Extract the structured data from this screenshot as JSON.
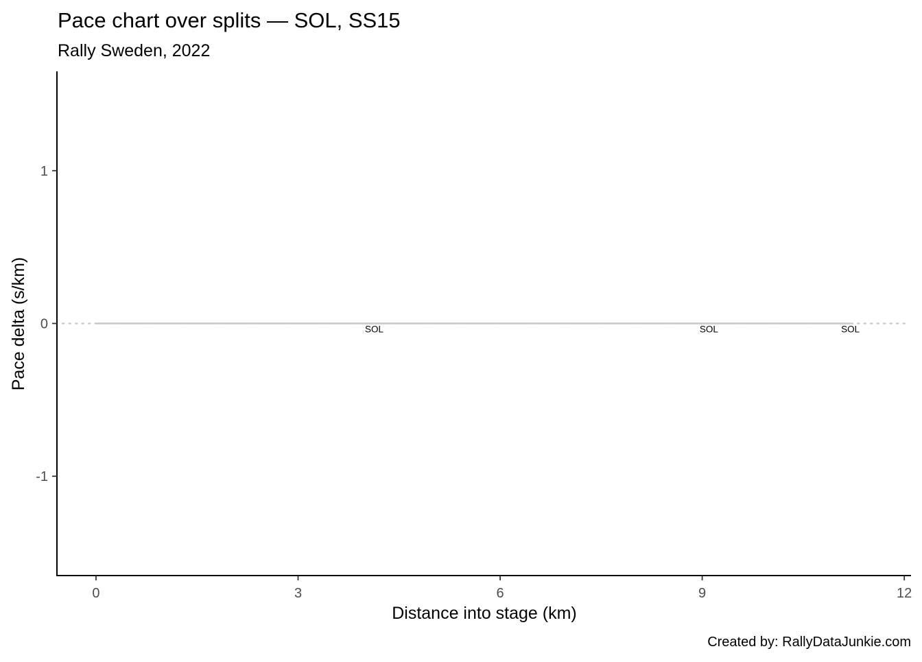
{
  "chart_data": {
    "type": "line",
    "title": "Pace chart over splits — SOL, SS15",
    "subtitle": "Rally Sweden, 2022",
    "xlabel": "Distance into stage (km)",
    "ylabel": "Pace delta (s/km)",
    "caption": "Created by: RallyDataJunkie.com",
    "xlim": [
      -0.58,
      12.1
    ],
    "ylim": [
      1.65,
      -1.65
    ],
    "y_reversed": true,
    "x_ticks": [
      0,
      3,
      6,
      9,
      12
    ],
    "x_tick_labels": [
      "0",
      "3",
      "6",
      "9",
      "12"
    ],
    "y_ticks": [
      -1,
      0,
      1
    ],
    "y_tick_labels": [
      "-1",
      "0",
      "1"
    ],
    "reference_line": {
      "y": 0,
      "style": "dotted",
      "color": "#c8c8c8"
    },
    "series": [
      {
        "color": "#c8c8c8",
        "x": [
          0,
          4.13,
          9.1,
          11.2
        ],
        "y": [
          0,
          0,
          0,
          0
        ]
      }
    ],
    "point_labels": [
      {
        "x": 4.13,
        "y": 0,
        "text": "SOL"
      },
      {
        "x": 9.1,
        "y": 0,
        "text": "SOL"
      },
      {
        "x": 11.2,
        "y": 0,
        "text": "SOL"
      }
    ],
    "grid": false,
    "legend": "none"
  }
}
